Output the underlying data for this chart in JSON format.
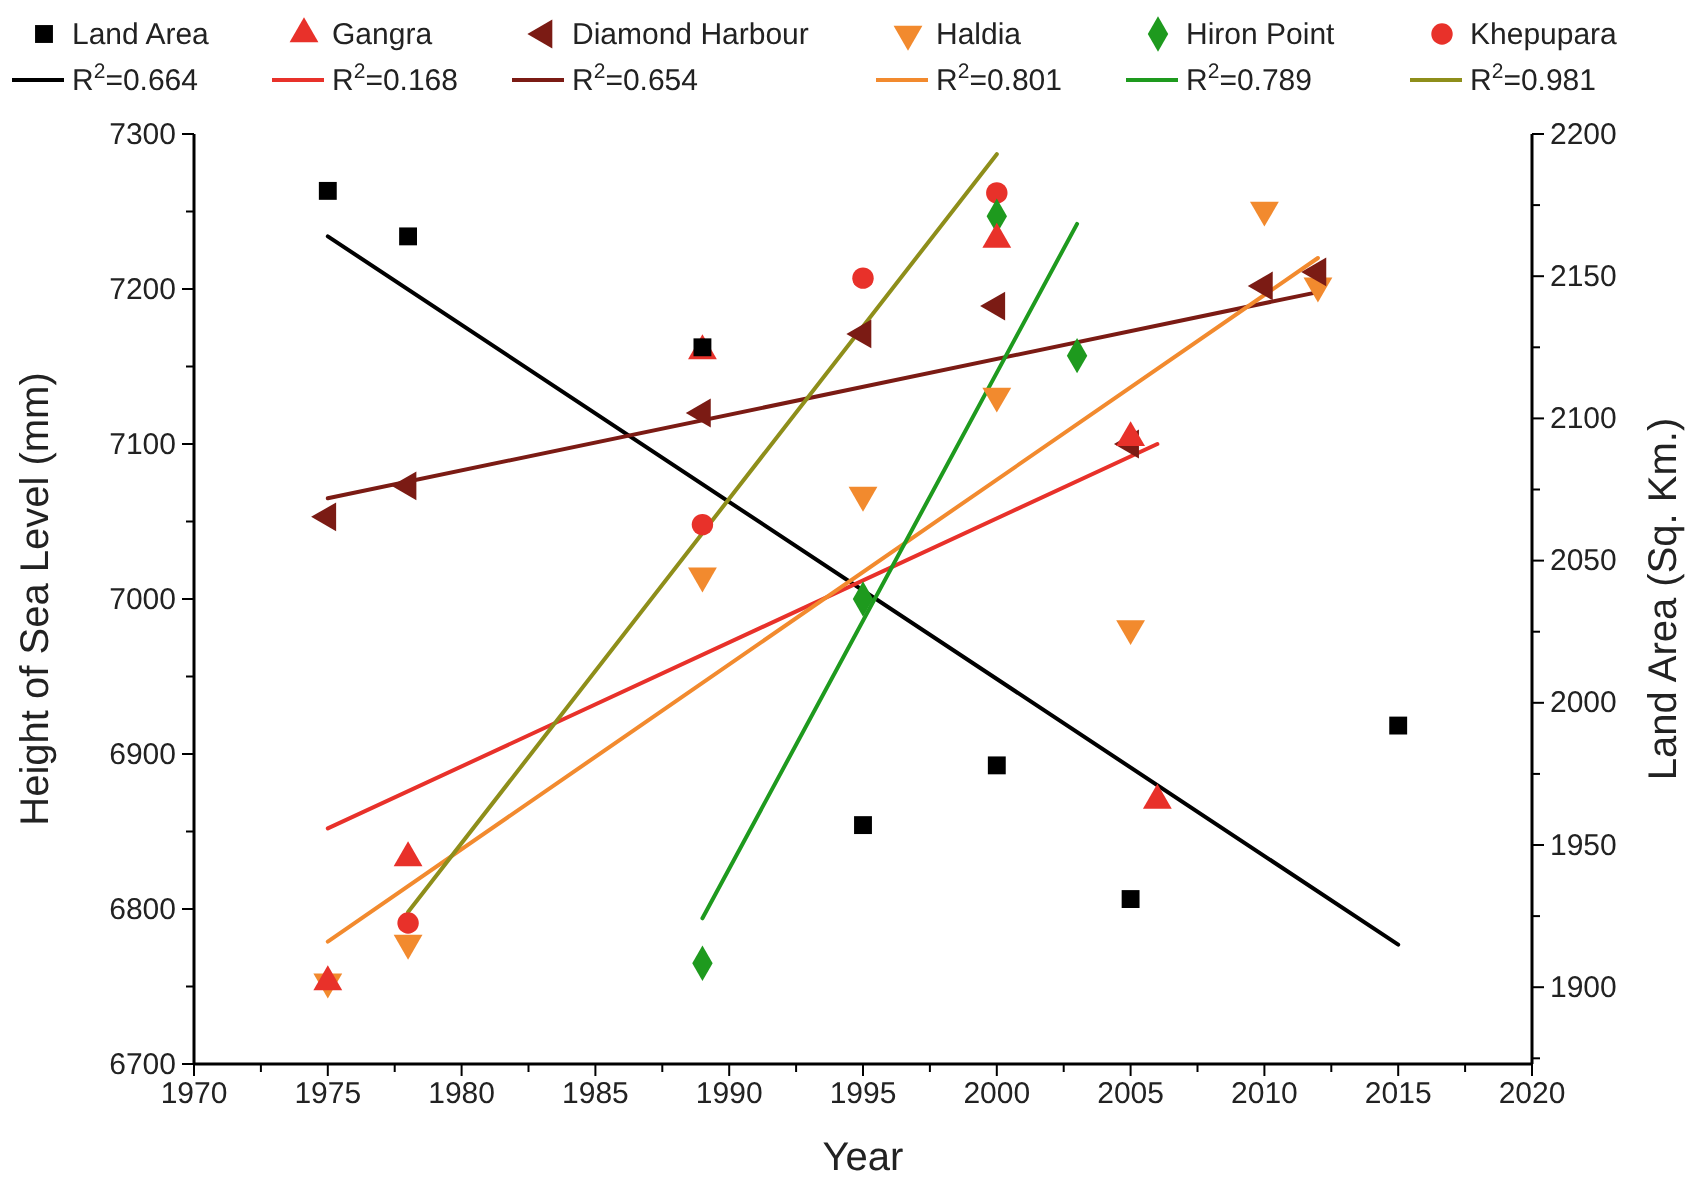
{
  "chart_data": {
    "type": "scatter",
    "xlabel": "Year",
    "ylabel": "Height of Sea Level (mm)",
    "y2label": "Land Area (Sq. Km.)",
    "xlim": [
      1970,
      2020
    ],
    "xticks": [
      1970,
      {
        "value": 1972.5,
        "label": null
      },
      1975,
      {
        "value": 1977.5,
        "label": null
      },
      1980,
      {
        "value": 1982.5,
        "label": null
      },
      1985,
      {
        "value": 1987.5,
        "label": null
      },
      1990,
      {
        "value": 1992.5,
        "label": null
      },
      1995,
      {
        "value": 1997.5,
        "label": null
      },
      2000,
      {
        "value": 2002.5,
        "label": null
      },
      2005,
      {
        "value": 2007.5,
        "label": null
      },
      2010,
      {
        "value": 2012.5,
        "label": null
      },
      2015,
      {
        "value": 2017.5,
        "label": null
      },
      2020
    ],
    "ylim": [
      6700,
      7300
    ],
    "yticks": [
      6700,
      {
        "value": 6750,
        "label": null
      },
      6800,
      {
        "value": 6850,
        "label": null
      },
      6900,
      {
        "value": 6950,
        "label": null
      },
      7000,
      {
        "value": 7050,
        "label": null
      },
      7100,
      {
        "value": 7150,
        "label": null
      },
      7200,
      {
        "value": 7250,
        "label": null
      },
      7300
    ],
    "y2lim": [
      1873,
      2200
    ],
    "y2ticks": [
      {
        "value": 1875,
        "label": null
      },
      1900,
      {
        "value": 1925,
        "label": null
      },
      1950,
      {
        "value": 1975,
        "label": null
      },
      2000,
      {
        "value": 2025,
        "label": null
      },
      2050,
      {
        "value": 2075,
        "label": null
      },
      2100,
      {
        "value": 2125,
        "label": null
      },
      2150,
      {
        "value": 2175,
        "label": null
      },
      2200
    ],
    "legend": "top",
    "grid": false,
    "series": [
      {
        "name": "Land Area",
        "type": "scatter",
        "axis": "y2",
        "marker": "square",
        "color": "#000000",
        "x": [
          1975,
          1978,
          1989,
          1995,
          2000,
          2005,
          2015
        ],
        "values": [
          2180,
          2164,
          2125,
          1957,
          1978,
          1931,
          1992
        ]
      },
      {
        "name": "Gangra",
        "type": "scatter",
        "marker": "triangle",
        "color": "#e8312a",
        "x": [
          1975,
          1978,
          1989,
          2000,
          2005,
          2006
        ],
        "values": [
          6753,
          6833,
          7160,
          7232,
          7104,
          6870
        ]
      },
      {
        "name": "Diamond Harbour",
        "type": "scatter",
        "marker": "triangle-left",
        "color": "#7b1b14",
        "x": [
          1975,
          1978,
          1989,
          1995,
          2000,
          2005,
          2010,
          2012
        ],
        "values": [
          7053,
          7073,
          7120,
          7171,
          7189,
          7100,
          7202,
          7211
        ]
      },
      {
        "name": "Haldia",
        "type": "scatter",
        "marker": "triangle-down",
        "color": "#f28a2e",
        "x": [
          1975,
          1978,
          1989,
          1995,
          2000,
          2005,
          2010,
          2012
        ],
        "values": [
          6753,
          6778,
          7015,
          7067,
          7131,
          6981,
          7251,
          7202
        ]
      },
      {
        "name": "Hiron Point",
        "type": "scatter",
        "marker": "diamond",
        "color": "#1e9a1e",
        "x": [
          1989,
          1995,
          2000,
          2003
        ],
        "values": [
          6765,
          7000,
          7247,
          7157
        ]
      },
      {
        "name": "Khepupara",
        "type": "scatter",
        "marker": "circle",
        "color": "#e8312a",
        "x": [
          1978,
          1989,
          1995,
          2000
        ],
        "values": [
          6791,
          7048,
          7207,
          7262
        ]
      },
      {
        "name": "R$^{2}$=0.664",
        "type": "line",
        "axis": "y2",
        "color": "#000000",
        "x": [
          1975,
          2015
        ],
        "values": [
          2164,
          1915
        ]
      },
      {
        "name": "R$^{2}$=0.168",
        "type": "line",
        "color": "#e8312a",
        "x": [
          1975,
          2006
        ],
        "values": [
          6852,
          7100
        ]
      },
      {
        "name": "R$^{2}$=0.654",
        "type": "line",
        "color": "#7b1b14",
        "x": [
          1975,
          2012
        ],
        "values": [
          7065,
          7198
        ]
      },
      {
        "name": "R$^{2}$=0.801",
        "type": "line",
        "color": "#f28a2e",
        "x": [
          1975,
          2012
        ],
        "values": [
          6779,
          7220
        ]
      },
      {
        "name": "R$^{2}$=0.789",
        "type": "line",
        "color": "#1e9a1e",
        "x": [
          1989,
          2003
        ],
        "values": [
          6794,
          7242
        ]
      },
      {
        "name": "R$^{2}$=0.981",
        "type": "line",
        "color": "#8e8e1a",
        "x": [
          1978,
          2000
        ],
        "values": [
          6798,
          7287
        ]
      }
    ]
  }
}
